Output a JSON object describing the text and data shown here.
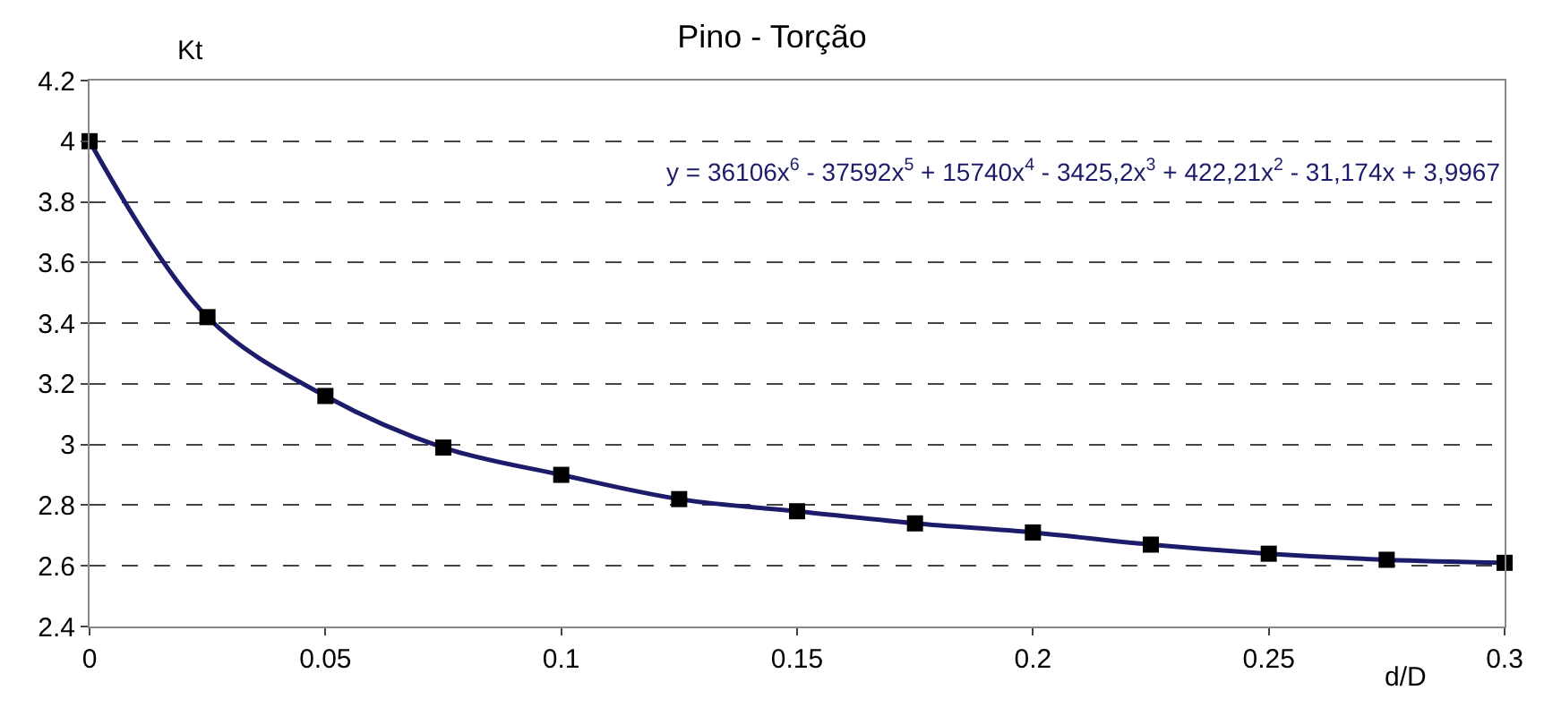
{
  "chart_data": {
    "type": "line",
    "title": "Pino - Torção",
    "xlabel": "d/D",
    "ylabel": "Kt",
    "x": [
      0,
      0.025,
      0.05,
      0.075,
      0.1,
      0.125,
      0.15,
      0.175,
      0.2,
      0.225,
      0.25,
      0.275,
      0.3
    ],
    "series": [
      {
        "color": "#1c1c6a",
        "values": [
          4.0,
          3.42,
          3.16,
          2.99,
          2.9,
          2.82,
          2.78,
          2.74,
          2.71,
          2.67,
          2.64,
          2.62,
          2.61
        ]
      }
    ],
    "annotations": [
      "y = 36106x$^{6}$ - 37592x$^{5}$ + 15740x$^{4}$ - 3425,2x$^{3}$ + 422,21x$^{2}$ - 31,174x + 3,9967"
    ],
    "xlim": [
      0,
      0.3
    ],
    "xticks": [
      0,
      0.05,
      0.1,
      0.15,
      0.2,
      0.25,
      0.3
    ],
    "ylim": [
      2.4,
      4.2
    ],
    "yticks": [
      2.4,
      2.6,
      2.8,
      3,
      3.2,
      3.4,
      3.6,
      3.8,
      4,
      4.2
    ],
    "grid": "y",
    "marker": "square",
    "line_style": "solid",
    "legend": false
  }
}
